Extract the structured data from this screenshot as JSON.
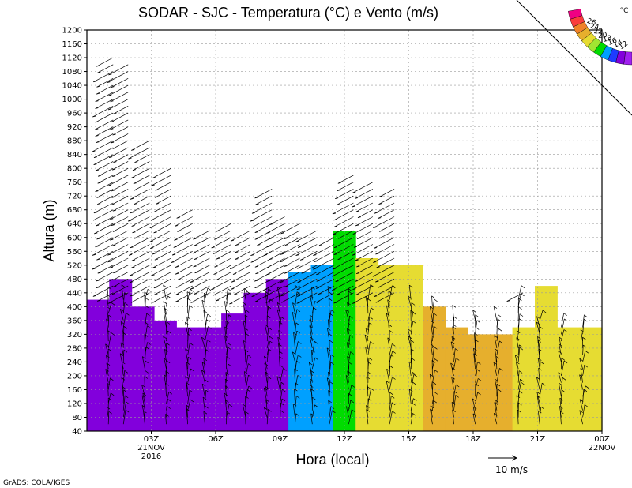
{
  "header": {
    "title": "SODAR - SJC - Temperatura (°C) e Vento (m/s)"
  },
  "footer": {
    "credit": "GrADS: COLA/IGES",
    "wind_ref_label": "10 m/s"
  },
  "chart_data": {
    "type": "heatmap",
    "title": "SODAR - SJC - Temperatura (°C) e Vento (m/s)",
    "xlabel": "Hora (local)",
    "ylabel": "Altura (m)",
    "xlim_hours": [
      0,
      24
    ],
    "ylim": [
      40,
      1200
    ],
    "y_ticks": [
      40,
      80,
      120,
      160,
      200,
      240,
      280,
      320,
      360,
      400,
      440,
      480,
      520,
      560,
      600,
      640,
      680,
      720,
      760,
      800,
      840,
      880,
      920,
      960,
      1000,
      1040,
      1080,
      1120,
      1160,
      1200
    ],
    "x_ticks": [
      {
        "hour": 3,
        "label": "03Z",
        "sub1": "21NOV",
        "sub2": "2016"
      },
      {
        "hour": 6,
        "label": "06Z"
      },
      {
        "hour": 9,
        "label": "09Z"
      },
      {
        "hour": 12,
        "label": "12Z"
      },
      {
        "hour": 15,
        "label": "15Z"
      },
      {
        "hour": 18,
        "label": "18Z"
      },
      {
        "hour": 21,
        "label": "21Z"
      },
      {
        "hour": 24,
        "label": "00Z",
        "sub1": "22NOV"
      }
    ],
    "grid": true,
    "legend": {
      "position": "top-right",
      "unit": "°C",
      "levels": [
        12,
        14,
        16,
        18,
        20,
        22,
        24,
        26
      ],
      "colors": [
        "#a020f0",
        "#8200dc",
        "#1e3cff",
        "#00a0ff",
        "#00dc00",
        "#a0e632",
        "#e6dc32",
        "#e6af2d",
        "#f08228",
        "#fa3c3c",
        "#f00082"
      ]
    },
    "columns": [
      {
        "t": 0,
        "top": 420,
        "color": "#8200dc"
      },
      {
        "t": 1,
        "top": 480,
        "color": "#8200dc"
      },
      {
        "t": 2,
        "top": 400,
        "color": "#8200dc"
      },
      {
        "t": 3,
        "top": 360,
        "color": "#8200dc"
      },
      {
        "t": 4,
        "top": 340,
        "color": "#8200dc"
      },
      {
        "t": 5,
        "top": 340,
        "color": "#8200dc"
      },
      {
        "t": 6,
        "top": 380,
        "color": "#8200dc"
      },
      {
        "t": 7,
        "top": 440,
        "color": "#8200dc"
      },
      {
        "t": 8,
        "top": 480,
        "color": "#8200dc"
      },
      {
        "t": 9,
        "top": 500,
        "color": "#00a0ff"
      },
      {
        "t": 10,
        "top": 520,
        "color": "#00a0ff"
      },
      {
        "t": 11,
        "top": 620,
        "color": "#00dc00"
      },
      {
        "t": 12,
        "top": 540,
        "color": "#e6dc32"
      },
      {
        "t": 13,
        "top": 520,
        "color": "#e6dc32"
      },
      {
        "t": 14,
        "top": 520,
        "color": "#e6dc32"
      },
      {
        "t": 15,
        "top": 400,
        "color": "#e6af2d"
      },
      {
        "t": 16,
        "top": 340,
        "color": "#e6af2d"
      },
      {
        "t": 17,
        "top": 320,
        "color": "#e6af2d"
      },
      {
        "t": 18,
        "top": 320,
        "color": "#e6af2d"
      },
      {
        "t": 19,
        "top": 340,
        "color": "#e6dc32"
      },
      {
        "t": 20,
        "top": 460,
        "color": "#e6dc32"
      },
      {
        "t": 21,
        "top": 340,
        "color": "#e6dc32"
      },
      {
        "t": 22,
        "top": 340,
        "color": "#e6dc32"
      }
    ],
    "wind_profiles": [
      {
        "hour": 1.0,
        "top": 1120
      },
      {
        "hour": 1.7,
        "top": 1100
      },
      {
        "hour": 2.7,
        "top": 880
      },
      {
        "hour": 3.7,
        "top": 800
      },
      {
        "hour": 4.7,
        "top": 680
      },
      {
        "hour": 5.5,
        "top": 620
      },
      {
        "hour": 6.5,
        "top": 640
      },
      {
        "hour": 7.4,
        "top": 620
      },
      {
        "hour": 8.4,
        "top": 740
      },
      {
        "hour": 9.0,
        "top": 660
      },
      {
        "hour": 9.7,
        "top": 640
      },
      {
        "hour": 10.5,
        "top": 620
      },
      {
        "hour": 11.3,
        "top": 600
      },
      {
        "hour": 12.2,
        "top": 780
      },
      {
        "hour": 13.1,
        "top": 760
      },
      {
        "hour": 14.1,
        "top": 740
      },
      {
        "hour": 15.1,
        "top": 420
      },
      {
        "hour": 16.1,
        "top": 400
      },
      {
        "hour": 17.1,
        "top": 360
      },
      {
        "hour": 18.1,
        "top": 360
      },
      {
        "hour": 19.1,
        "top": 360
      },
      {
        "hour": 20.1,
        "top": 440
      },
      {
        "hour": 21.1,
        "top": 360
      },
      {
        "hour": 22.1,
        "top": 340
      },
      {
        "hour": 23.1,
        "top": 340
      }
    ]
  }
}
